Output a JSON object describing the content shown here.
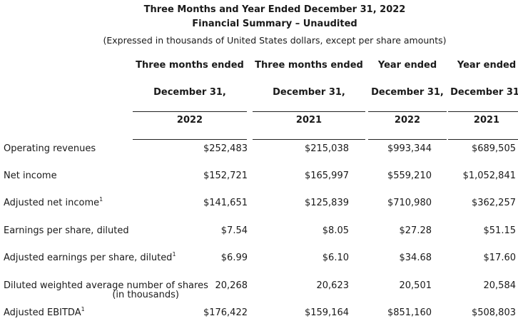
{
  "header": {
    "title": "Three Months and Year Ended December 31, 2022",
    "subtitle": "Financial Summary – Unaudited",
    "note": "(Expressed in thousands of United States dollars, except per share amounts)"
  },
  "columns": [
    {
      "line1": "Three months ended",
      "line2": "December 31,",
      "year": "2022"
    },
    {
      "line1": "Three months ended",
      "line2": "December 31,",
      "year": "2021"
    },
    {
      "line1": "Year ended",
      "line2": "December 31,",
      "year": "2022"
    },
    {
      "line1": "Year ended",
      "line2": "December 31,",
      "year": "2021"
    }
  ],
  "rows": [
    {
      "label": "Operating revenues",
      "footnote": "",
      "values": [
        "$252,483",
        "$215,038",
        "$993,344",
        "$689,505"
      ]
    },
    {
      "label": "Net income",
      "footnote": "",
      "values": [
        "$152,721",
        "$165,997",
        "$559,210",
        "$1,052,841"
      ]
    },
    {
      "label": "Adjusted net income",
      "footnote": "1",
      "values": [
        "$141,651",
        "$125,839",
        "$710,980",
        "$362,257"
      ]
    },
    {
      "label": "Earnings per share, diluted",
      "footnote": "",
      "values": [
        "$7.54",
        "$8.05",
        "$27.28",
        "$51.15"
      ]
    },
    {
      "label": "Adjusted earnings per share, diluted",
      "footnote": "1",
      "values": [
        "$6.99",
        "$6.10",
        "$34.68",
        "$17.60"
      ]
    },
    {
      "label": "Diluted weighted average number of shares",
      "sublabel": "(in thousands)",
      "footnote": "",
      "values": [
        "20,268",
        "20,623",
        "20,501",
        "20,584"
      ]
    },
    {
      "label": "Adjusted EBITDA",
      "footnote": "1",
      "values": [
        "$176,422",
        "$159,164",
        "$851,160",
        "$508,803"
      ]
    }
  ]
}
